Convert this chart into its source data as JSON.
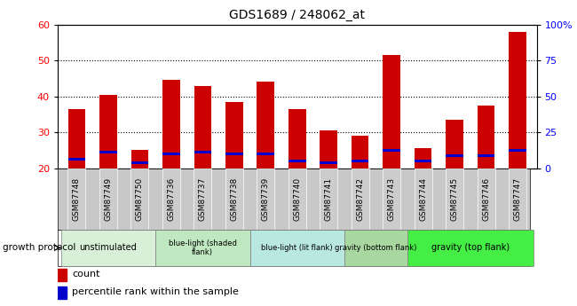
{
  "title": "GDS1689 / 248062_at",
  "samples": [
    "GSM87748",
    "GSM87749",
    "GSM87750",
    "GSM87736",
    "GSM87737",
    "GSM87738",
    "GSM87739",
    "GSM87740",
    "GSM87741",
    "GSM87742",
    "GSM87743",
    "GSM87744",
    "GSM87745",
    "GSM87746",
    "GSM87747"
  ],
  "counts": [
    36.5,
    40.5,
    25.0,
    44.5,
    43.0,
    38.5,
    44.0,
    36.5,
    30.5,
    29.0,
    51.5,
    25.5,
    33.5,
    37.5,
    58.0
  ],
  "percentile_marks": [
    22.5,
    24.5,
    21.5,
    24.0,
    24.5,
    24.0,
    24.0,
    22.0,
    21.5,
    22.0,
    25.0,
    22.0,
    23.5,
    23.5,
    25.0
  ],
  "ymin": 20,
  "ymax": 60,
  "yticks": [
    20,
    30,
    40,
    50,
    60
  ],
  "y2ticks": [
    0,
    25,
    50,
    75,
    100
  ],
  "y2labels": [
    "0",
    "25",
    "50",
    "75",
    "100%"
  ],
  "groups": [
    {
      "label": "unstimulated",
      "start": 0,
      "end": 3,
      "color": "#d8f0d8"
    },
    {
      "label": "blue-light (shaded\nflank)",
      "start": 3,
      "end": 6,
      "color": "#c0e8c0"
    },
    {
      "label": "blue-light (lit flank)",
      "start": 6,
      "end": 9,
      "color": "#b8e8e0"
    },
    {
      "label": "gravity (bottom flank)",
      "start": 9,
      "end": 11,
      "color": "#a8d8a0"
    },
    {
      "label": "gravity (top flank)",
      "start": 11,
      "end": 15,
      "color": "#44ee44"
    }
  ],
  "bar_color": "#cc0000",
  "pct_color": "#0000cc",
  "bar_width": 0.55,
  "tick_bg": "#c8c8c8",
  "group_label": "growth protocol",
  "legend_count": "count",
  "legend_pct": "percentile rank within the sample",
  "title_fontsize": 10,
  "label_fontsize": 7
}
